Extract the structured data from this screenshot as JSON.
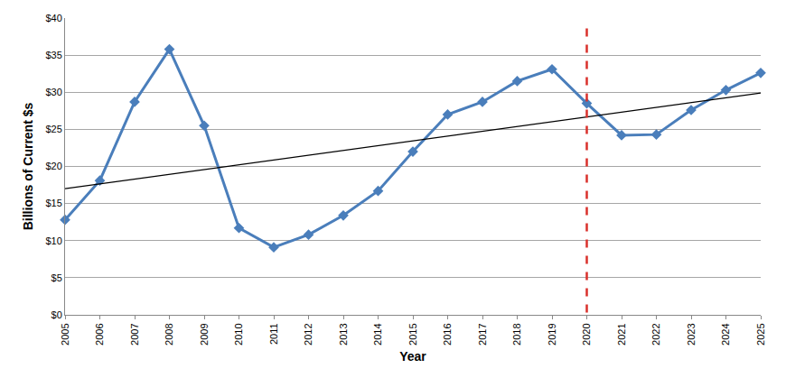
{
  "chart_data": {
    "type": "line",
    "x_label": "Year",
    "y_label": "Billions of Current $s",
    "x": [
      2005,
      2006,
      2007,
      2008,
      2009,
      2010,
      2011,
      2012,
      2013,
      2014,
      2015,
      2016,
      2017,
      2018,
      2019,
      2020,
      2021,
      2022,
      2023,
      2024,
      2025
    ],
    "series": [
      {
        "color": "#4a7ebb",
        "marker": "diamond",
        "line_style": "solid",
        "values": [
          12.8,
          18.1,
          28.7,
          35.8,
          25.5,
          11.7,
          9.1,
          10.8,
          13.4,
          16.7,
          22.0,
          27.0,
          28.7,
          31.5,
          33.1,
          28.5,
          24.2,
          24.3,
          27.6,
          30.3,
          32.6
        ]
      },
      {
        "color": "#000000",
        "line_style": "solid",
        "x": [
          2005,
          2025
        ],
        "values": [
          17.0,
          29.9
        ]
      },
      {
        "color": "#d9302b",
        "line_style": "dashed",
        "x": [
          2020,
          2020
        ],
        "values": [
          0.3,
          39.5
        ]
      }
    ],
    "xlim": [
      2005,
      2025
    ],
    "xticks": [
      2005,
      2006,
      2007,
      2008,
      2009,
      2010,
      2011,
      2012,
      2013,
      2014,
      2015,
      2016,
      2017,
      2018,
      2019,
      2020,
      2021,
      2022,
      2023,
      2024,
      2025
    ],
    "ylim": [
      0,
      40
    ],
    "yticks": [
      {
        "value": 0,
        "label": "$0"
      },
      {
        "value": 5,
        "label": "$5"
      },
      {
        "value": 10,
        "label": "$10"
      },
      {
        "value": 15,
        "label": "$15"
      },
      {
        "value": 20,
        "label": "$20"
      },
      {
        "value": 25,
        "label": "$25"
      },
      {
        "value": 30,
        "label": "$30"
      },
      {
        "value": 35,
        "label": "$35"
      },
      {
        "value": 40,
        "label": "$40"
      }
    ],
    "grid": true
  }
}
